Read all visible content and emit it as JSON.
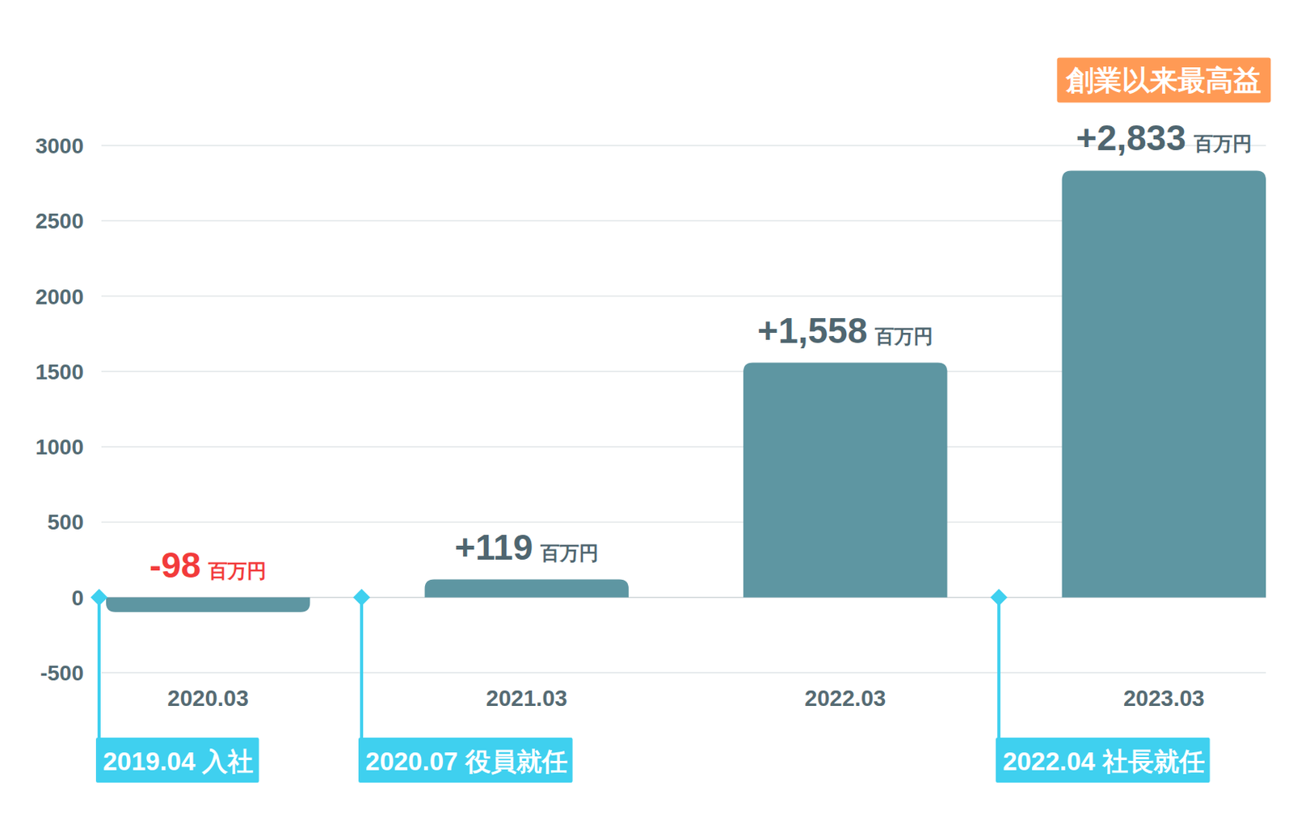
{
  "chart_data": {
    "type": "bar",
    "categories": [
      "2020.03",
      "2021.03",
      "2022.03",
      "2023.03"
    ],
    "values": [
      -98,
      119,
      1558,
      2833
    ],
    "value_labels": [
      "-98",
      "+119",
      "+1,558",
      "+2,833"
    ],
    "unit": "百万円",
    "color": "#5e96a2",
    "ylim": [
      -500,
      3000
    ],
    "yticks": [
      -500,
      0,
      500,
      1000,
      1500,
      2000,
      2500,
      3000
    ],
    "grid": true,
    "data_labels": true,
    "annotations": [
      {
        "text": "創業以来最高益",
        "category": "2023.03"
      }
    ],
    "milestones": [
      {
        "text": "2019.04 入社",
        "category": "2020.03"
      },
      {
        "text": "2020.07 役員就任",
        "category": "2021.03"
      },
      {
        "text": "2022.04 社長就任",
        "category": "2023.03"
      }
    ]
  }
}
